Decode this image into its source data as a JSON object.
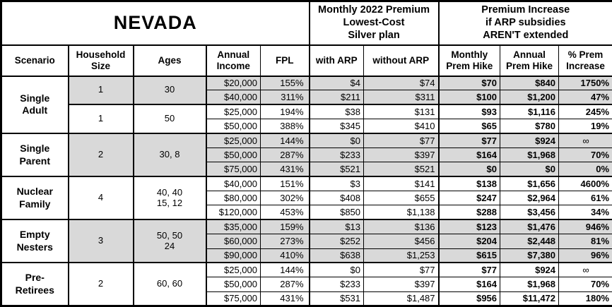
{
  "title": "NEVADA",
  "group_headers": {
    "premium_2022": "Monthly 2022 Premium\nLowest-Cost\nSilver plan",
    "arp_increase": "Premium Increase\nif ARP subsidies\nAREN'T extended"
  },
  "columns": [
    "Scenario",
    "Household\nSize",
    "Ages",
    "Annual\nIncome",
    "FPL",
    "with ARP",
    "without ARP",
    "Monthly\nPrem Hike",
    "Annual\nPrem Hike",
    "% Prem\nIncrease"
  ],
  "colors": {
    "shaded_row": "#d9d9d9",
    "border": "#000000",
    "background": "#ffffff"
  },
  "groups": [
    {
      "scenario": "Single\nAdult",
      "subgroups": [
        {
          "household_size": "1",
          "ages": "30",
          "shaded": true,
          "rows": [
            {
              "income": "$20,000",
              "fpl": "155%",
              "with_arp": "$4",
              "without_arp": "$74",
              "monthly_hike": "$70",
              "annual_hike": "$840",
              "pct_increase": "1750%"
            },
            {
              "income": "$40,000",
              "fpl": "311%",
              "with_arp": "$211",
              "without_arp": "$311",
              "monthly_hike": "$100",
              "annual_hike": "$1,200",
              "pct_increase": "47%"
            }
          ]
        },
        {
          "household_size": "1",
          "ages": "50",
          "shaded": false,
          "rows": [
            {
              "income": "$25,000",
              "fpl": "194%",
              "with_arp": "$38",
              "without_arp": "$131",
              "monthly_hike": "$93",
              "annual_hike": "$1,116",
              "pct_increase": "245%"
            },
            {
              "income": "$50,000",
              "fpl": "388%",
              "with_arp": "$345",
              "without_arp": "$410",
              "monthly_hike": "$65",
              "annual_hike": "$780",
              "pct_increase": "19%"
            }
          ]
        }
      ]
    },
    {
      "scenario": "Single\nParent",
      "subgroups": [
        {
          "household_size": "2",
          "ages": "30, 8",
          "shaded": true,
          "rows": [
            {
              "income": "$25,000",
              "fpl": "144%",
              "with_arp": "$0",
              "without_arp": "$77",
              "monthly_hike": "$77",
              "annual_hike": "$924",
              "pct_increase": "∞"
            },
            {
              "income": "$50,000",
              "fpl": "287%",
              "with_arp": "$233",
              "without_arp": "$397",
              "monthly_hike": "$164",
              "annual_hike": "$1,968",
              "pct_increase": "70%"
            },
            {
              "income": "$75,000",
              "fpl": "431%",
              "with_arp": "$521",
              "without_arp": "$521",
              "monthly_hike": "$0",
              "annual_hike": "$0",
              "pct_increase": "0%"
            }
          ]
        }
      ]
    },
    {
      "scenario": "Nuclear\nFamily",
      "subgroups": [
        {
          "household_size": "4",
          "ages": "40, 40\n15, 12",
          "shaded": false,
          "rows": [
            {
              "income": "$40,000",
              "fpl": "151%",
              "with_arp": "$3",
              "without_arp": "$141",
              "monthly_hike": "$138",
              "annual_hike": "$1,656",
              "pct_increase": "4600%"
            },
            {
              "income": "$80,000",
              "fpl": "302%",
              "with_arp": "$408",
              "without_arp": "$655",
              "monthly_hike": "$247",
              "annual_hike": "$2,964",
              "pct_increase": "61%"
            },
            {
              "income": "$120,000",
              "fpl": "453%",
              "with_arp": "$850",
              "without_arp": "$1,138",
              "monthly_hike": "$288",
              "annual_hike": "$3,456",
              "pct_increase": "34%"
            }
          ]
        }
      ]
    },
    {
      "scenario": "Empty\nNesters",
      "subgroups": [
        {
          "household_size": "3",
          "ages": "50, 50\n24",
          "shaded": true,
          "rows": [
            {
              "income": "$35,000",
              "fpl": "159%",
              "with_arp": "$13",
              "without_arp": "$136",
              "monthly_hike": "$123",
              "annual_hike": "$1,476",
              "pct_increase": "946%"
            },
            {
              "income": "$60,000",
              "fpl": "273%",
              "with_arp": "$252",
              "without_arp": "$456",
              "monthly_hike": "$204",
              "annual_hike": "$2,448",
              "pct_increase": "81%"
            },
            {
              "income": "$90,000",
              "fpl": "410%",
              "with_arp": "$638",
              "without_arp": "$1,253",
              "monthly_hike": "$615",
              "annual_hike": "$7,380",
              "pct_increase": "96%"
            }
          ]
        }
      ]
    },
    {
      "scenario": "Pre-\nRetirees",
      "subgroups": [
        {
          "household_size": "2",
          "ages": "60, 60",
          "shaded": false,
          "rows": [
            {
              "income": "$25,000",
              "fpl": "144%",
              "with_arp": "$0",
              "without_arp": "$77",
              "monthly_hike": "$77",
              "annual_hike": "$924",
              "pct_increase": "∞"
            },
            {
              "income": "$50,000",
              "fpl": "287%",
              "with_arp": "$233",
              "without_arp": "$397",
              "monthly_hike": "$164",
              "annual_hike": "$1,968",
              "pct_increase": "70%"
            },
            {
              "income": "$75,000",
              "fpl": "431%",
              "with_arp": "$531",
              "without_arp": "$1,487",
              "monthly_hike": "$956",
              "annual_hike": "$11,472",
              "pct_increase": "180%"
            }
          ]
        }
      ]
    }
  ]
}
